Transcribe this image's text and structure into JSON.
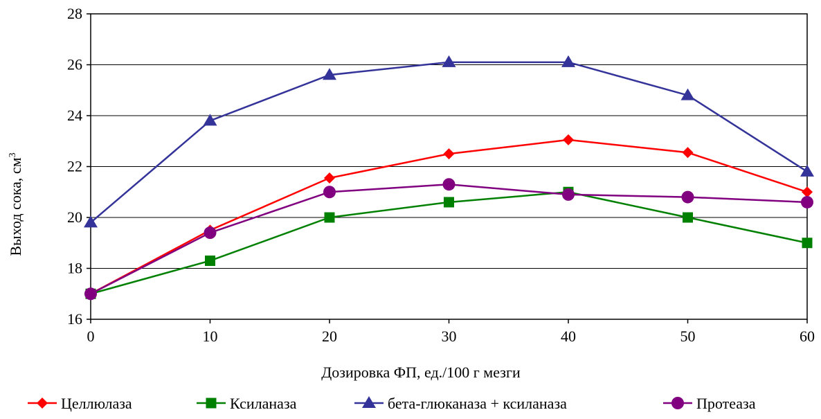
{
  "chart_data": {
    "type": "line",
    "xlabel": "Дозировка ФП, ед./100 г мезги",
    "ylabel_main": "Выход сока, см",
    "ylabel_sup": "3",
    "xlim": [
      0,
      60
    ],
    "ylim": [
      16,
      28
    ],
    "x_ticks": [
      "0",
      "10",
      "20",
      "30",
      "40",
      "50",
      "60"
    ],
    "y_ticks": [
      "16",
      "18",
      "20",
      "22",
      "24",
      "26",
      "28"
    ],
    "grid": "horizontal",
    "legend_position": "bottom",
    "x": [
      0,
      10,
      20,
      30,
      40,
      50,
      60
    ],
    "series": [
      {
        "name": "Целлюлаза",
        "marker": "diamond",
        "color": "#ff0000",
        "values": [
          17.0,
          19.5,
          21.55,
          22.5,
          23.05,
          22.55,
          21.0
        ]
      },
      {
        "name": "Ксиланаза",
        "marker": "square",
        "color": "#008000",
        "values": [
          17.0,
          18.3,
          20.0,
          20.6,
          21.0,
          20.0,
          19.0
        ]
      },
      {
        "name": "бета-глюканаза + ксиланаза",
        "marker": "triangle",
        "color": "#333399",
        "values": [
          19.8,
          23.8,
          25.6,
          26.1,
          26.1,
          24.8,
          21.8
        ]
      },
      {
        "name": "Протеаза",
        "marker": "circle",
        "color": "#800080",
        "values": [
          17.0,
          19.4,
          21.0,
          21.3,
          20.9,
          20.8,
          20.6
        ]
      }
    ]
  }
}
